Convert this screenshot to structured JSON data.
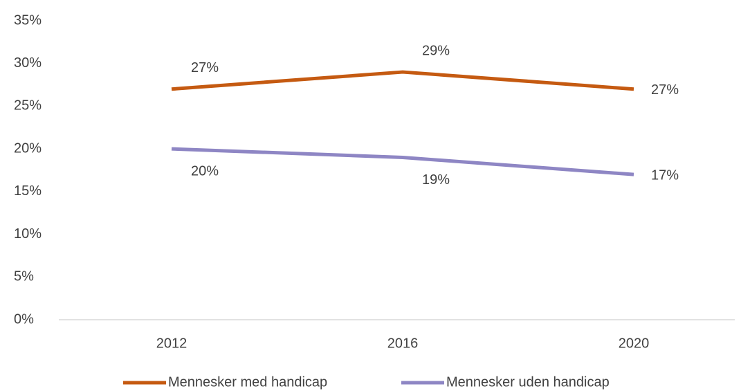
{
  "chart_data": {
    "type": "line",
    "categories": [
      "2012",
      "2016",
      "2020"
    ],
    "series": [
      {
        "name": "Mennesker med handicap",
        "color": "#c55a11",
        "values": [
          27,
          29,
          27
        ],
        "value_labels": [
          "27%",
          "29%",
          "27%"
        ]
      },
      {
        "name": "Mennesker uden handicap",
        "color": "#8e86c4",
        "values": [
          20,
          19,
          17
        ],
        "value_labels": [
          "20%",
          "19%",
          "17%"
        ]
      }
    ],
    "ylim": [
      0,
      35
    ],
    "yticks": [
      {
        "value": 0,
        "label": "0%"
      },
      {
        "value": 5,
        "label": "5%"
      },
      {
        "value": 10,
        "label": "10%"
      },
      {
        "value": 15,
        "label": "15%"
      },
      {
        "value": 20,
        "label": "20%"
      },
      {
        "value": 25,
        "label": "25%"
      },
      {
        "value": 30,
        "label": "30%"
      },
      {
        "value": 35,
        "label": "35%"
      }
    ],
    "grid": false,
    "legend": "bottom"
  }
}
